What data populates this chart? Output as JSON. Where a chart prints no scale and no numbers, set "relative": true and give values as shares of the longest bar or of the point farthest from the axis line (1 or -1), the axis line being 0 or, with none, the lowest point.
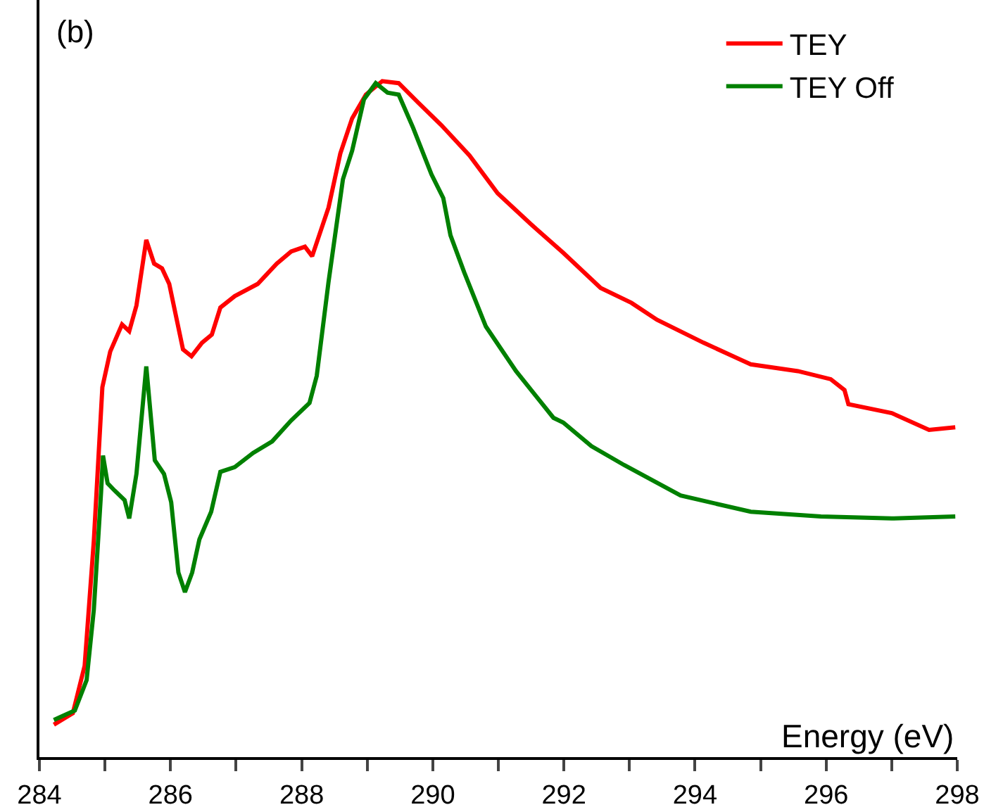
{
  "chart_data": {
    "type": "line",
    "title": "(b)",
    "xlabel": "Energy (eV)",
    "relative": true,
    "xlim": [
      284,
      298
    ],
    "xticks": [
      284,
      {
        "value": 285,
        "label": null
      },
      286,
      {
        "value": 287,
        "label": null
      },
      288,
      {
        "value": 289,
        "label": null
      },
      290,
      {
        "value": 291,
        "label": null
      },
      292,
      {
        "value": 293,
        "label": null
      },
      294,
      {
        "value": 295,
        "label": null
      },
      296,
      {
        "value": 297,
        "label": null
      },
      298
    ],
    "legend": "top right",
    "marker": "none",
    "line_style": "solid",
    "series": [
      {
        "name": "TEY",
        "color": "#ff0000",
        "x": [
          284.22,
          284.51,
          284.69,
          284.83,
          284.96,
          285.08,
          285.26,
          285.37,
          285.48,
          285.63,
          285.75,
          285.87,
          285.98,
          286.19,
          286.32,
          286.48,
          286.63,
          286.76,
          286.98,
          287.33,
          287.62,
          287.84,
          288.05,
          288.16,
          288.41,
          288.59,
          288.77,
          288.98,
          289.23,
          289.48,
          289.77,
          290.13,
          290.56,
          290.99,
          291.49,
          291.99,
          292.56,
          293.03,
          293.42,
          294.13,
          294.85,
          295.57,
          296.07,
          296.28,
          296.34,
          297.0,
          297.57,
          297.97
        ],
        "values": [
          0.048,
          0.065,
          0.135,
          0.32,
          0.547,
          0.6,
          0.64,
          0.63,
          0.668,
          0.765,
          0.73,
          0.723,
          0.7,
          0.603,
          0.593,
          0.613,
          0.625,
          0.665,
          0.682,
          0.7,
          0.73,
          0.748,
          0.755,
          0.741,
          0.813,
          0.893,
          0.945,
          0.98,
          1.0,
          0.997,
          0.969,
          0.935,
          0.89,
          0.834,
          0.789,
          0.746,
          0.694,
          0.672,
          0.647,
          0.613,
          0.581,
          0.571,
          0.559,
          0.543,
          0.522,
          0.509,
          0.484,
          0.488
        ]
      },
      {
        "name": "TEY Off",
        "color": "#008000",
        "x": [
          284.22,
          284.54,
          284.72,
          284.83,
          284.94,
          284.97,
          285.04,
          285.15,
          285.3,
          285.37,
          285.48,
          285.63,
          285.76,
          285.9,
          286.01,
          286.12,
          286.22,
          286.33,
          286.44,
          286.62,
          286.76,
          286.98,
          287.26,
          287.55,
          287.84,
          288.12,
          288.23,
          288.41,
          288.63,
          288.77,
          288.95,
          289.13,
          289.31,
          289.48,
          289.7,
          289.98,
          290.16,
          290.27,
          290.48,
          290.81,
          291.27,
          291.84,
          291.99,
          292.42,
          292.92,
          293.78,
          294.85,
          295.92,
          297.0,
          297.97
        ],
        "values": [
          0.055,
          0.069,
          0.114,
          0.218,
          0.391,
          0.446,
          0.405,
          0.394,
          0.38,
          0.353,
          0.419,
          0.578,
          0.439,
          0.419,
          0.377,
          0.273,
          0.244,
          0.273,
          0.322,
          0.363,
          0.422,
          0.429,
          0.45,
          0.467,
          0.498,
          0.524,
          0.564,
          0.703,
          0.855,
          0.897,
          0.973,
          0.997,
          0.983,
          0.98,
          0.931,
          0.862,
          0.827,
          0.772,
          0.717,
          0.637,
          0.571,
          0.502,
          0.495,
          0.46,
          0.432,
          0.387,
          0.363,
          0.356,
          0.353,
          0.356
        ]
      }
    ]
  }
}
